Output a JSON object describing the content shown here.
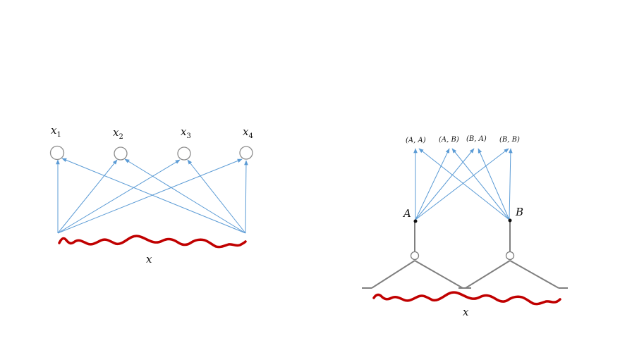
{
  "left_diagram": {
    "nodes": [
      {
        "name": "x",
        "sub": "1"
      },
      {
        "name": "x",
        "sub": "2"
      },
      {
        "name": "x",
        "sub": "3"
      },
      {
        "name": "x",
        "sub": "4"
      }
    ],
    "signal_label": "x"
  },
  "right_diagram": {
    "outputs": [
      "(A, A)",
      "(A, B)",
      "(B, A)",
      "(B, B)"
    ],
    "points": [
      "A",
      "B"
    ],
    "signal_label": "x"
  },
  "colors": {
    "arrow": "#5b9bd5",
    "node_stroke": "#8c8c8c",
    "signal": "#c00000",
    "structure": "#7f7f7f",
    "text": "#111111"
  }
}
